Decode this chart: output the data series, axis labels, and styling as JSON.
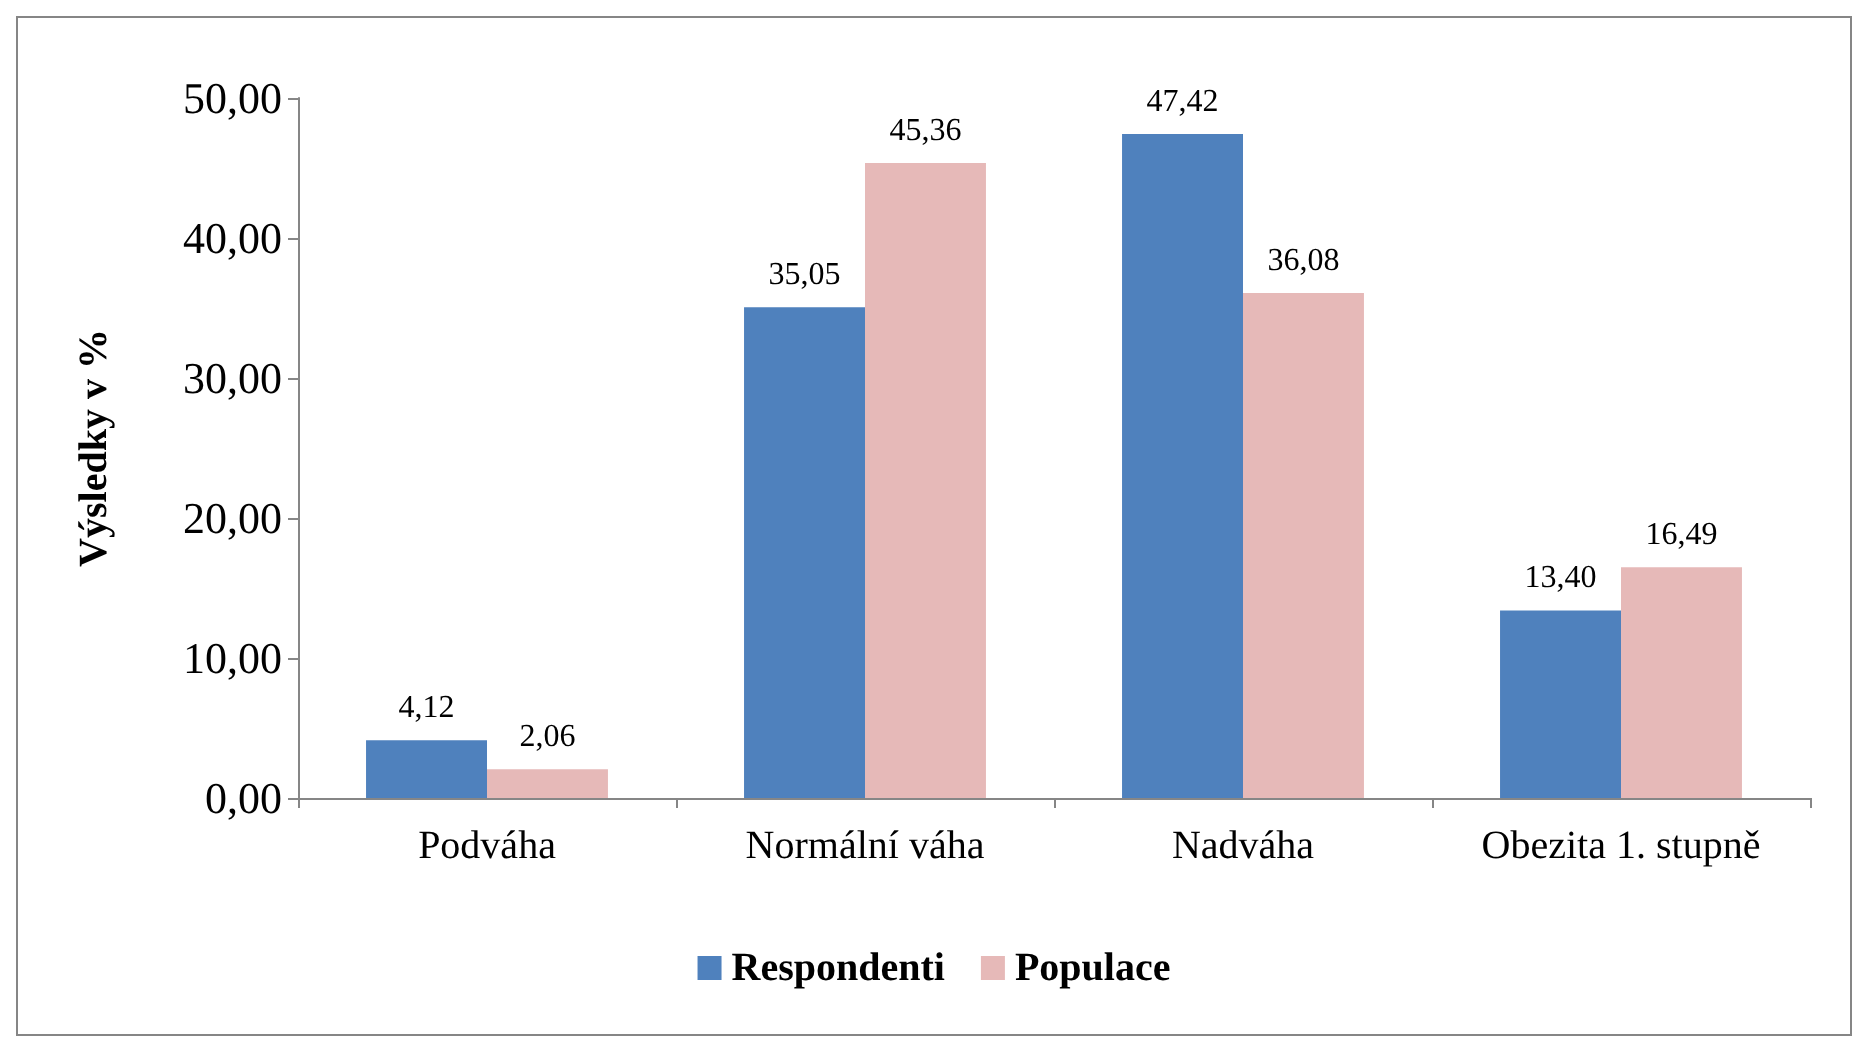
{
  "chart_data": {
    "type": "bar",
    "ylabel": "Výsledky v %",
    "categories": [
      "Podváha",
      "Normální váha",
      "Nadváha",
      "Obezita 1. stupně"
    ],
    "series": [
      {
        "name": "Respondenti",
        "color": "#4f81bd",
        "values": [
          4.12,
          35.05,
          47.42,
          13.4
        ],
        "value_labels": [
          "4,12",
          "35,05",
          "47,42",
          "13,40"
        ]
      },
      {
        "name": "Populace",
        "color": "#e6b9b8",
        "values": [
          2.06,
          45.36,
          36.08,
          16.49
        ],
        "value_labels": [
          "2,06",
          "45,36",
          "36,08",
          "16,49"
        ]
      }
    ],
    "ylim": [
      0,
      50
    ],
    "yticks": [
      {
        "value": 0,
        "label": "0,00"
      },
      {
        "value": 10,
        "label": "10,00"
      },
      {
        "value": 20,
        "label": "20,00"
      },
      {
        "value": 30,
        "label": "30,00"
      },
      {
        "value": 40,
        "label": "40,00"
      },
      {
        "value": 50,
        "label": "50,00"
      }
    ],
    "grid": false,
    "legend": "bottom"
  }
}
